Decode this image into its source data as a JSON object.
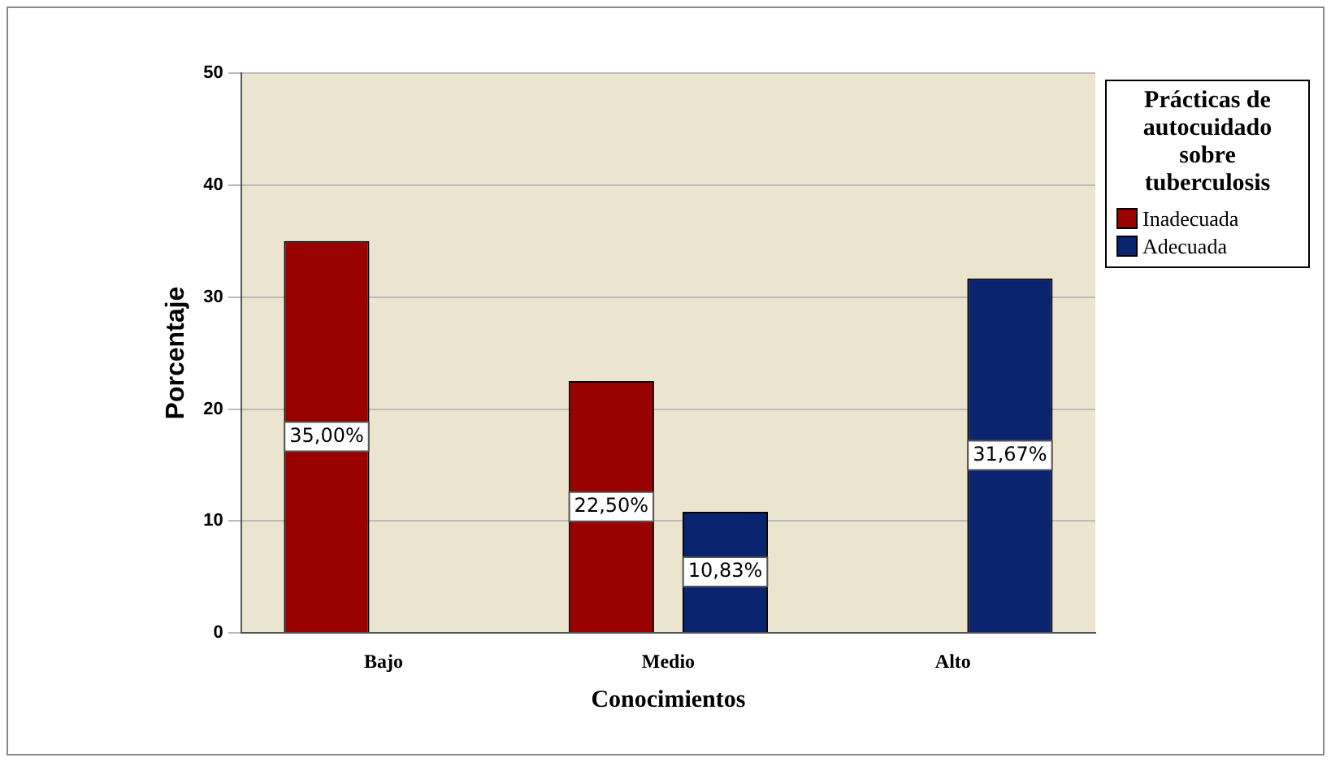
{
  "chart_data": {
    "type": "bar",
    "xlabel": "Conocimientos",
    "ylabel": "Porcentaje",
    "legend_title": "Prácticas de autocuidado sobre tuberculosis",
    "categories": [
      "Bajo",
      "Medio",
      "Alto"
    ],
    "series": [
      {
        "name": "Inadecuada",
        "color": "#990000",
        "values": [
          35,
          22.5,
          null
        ],
        "value_labels": [
          "35,00%",
          "22,50%",
          null
        ]
      },
      {
        "name": "Adecuada",
        "color": "#0a2470",
        "values": [
          null,
          10.83,
          31.67
        ],
        "value_labels": [
          null,
          "10,83%",
          "31,67%"
        ]
      }
    ],
    "ylim": [
      0,
      50
    ],
    "yticks": [
      0,
      10,
      20,
      30,
      40,
      50
    ],
    "grid": "y",
    "legend": "right"
  }
}
